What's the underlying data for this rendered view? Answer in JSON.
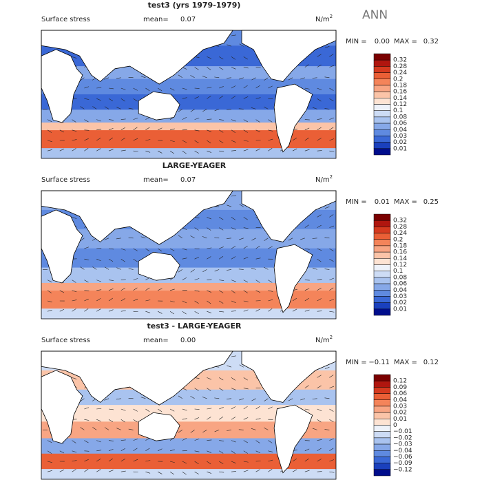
{
  "header": {
    "season": "ANN"
  },
  "panels": [
    {
      "title": "test3 (yrs 1979-1979)",
      "label": "Surface stress",
      "mean_label": "mean=",
      "mean": "0.07",
      "units": "N/m",
      "units_exp": "2",
      "min_label": "MIN =",
      "min": "0.00",
      "max_label": "MAX =",
      "max": "0.32",
      "colorbar": [
        "0.32",
        "0.28",
        "0.24",
        "0.2",
        "0.18",
        "0.16",
        "0.14",
        "0.12",
        "0.1",
        "0.08",
        "0.06",
        "0.04",
        "0.03",
        "0.02",
        "0.01"
      ]
    },
    {
      "title": "LARGE-YEAGER",
      "label": "Surface stress",
      "mean_label": "mean=",
      "mean": "0.07",
      "units": "N/m",
      "units_exp": "2",
      "min_label": "MIN =",
      "min": "0.01",
      "max_label": "MAX =",
      "max": "0.25",
      "colorbar": [
        "0.32",
        "0.28",
        "0.24",
        "0.2",
        "0.18",
        "0.16",
        "0.14",
        "0.12",
        "0.1",
        "0.08",
        "0.06",
        "0.04",
        "0.03",
        "0.02",
        "0.01"
      ]
    },
    {
      "title": "test3 - LARGE-YEAGER",
      "label": "Surface stress",
      "mean_label": "mean=",
      "mean": "0.00",
      "units": "N/m",
      "units_exp": "2",
      "min_label": "MIN =",
      "min": "−0.11",
      "max_label": "MAX =",
      "max": "0.12",
      "colorbar": [
        "0.12",
        "0.09",
        "0.06",
        "0.04",
        "0.03",
        "0.02",
        "0.01",
        "0",
        "−0.01",
        "−0.02",
        "−0.03",
        "−0.04",
        "−0.06",
        "−0.09",
        "−0.12"
      ]
    }
  ]
}
